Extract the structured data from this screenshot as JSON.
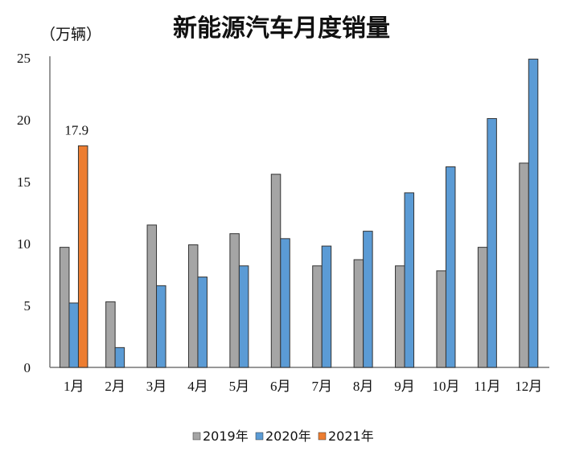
{
  "chart_data": {
    "type": "bar",
    "title": "新能源汽车月度销量",
    "ylabel": "（万辆）",
    "xlabel": "",
    "ylim": [
      0,
      25
    ],
    "yticks": [
      0,
      5,
      10,
      15,
      20,
      25
    ],
    "grid": false,
    "legend_position": "bottom",
    "categories": [
      "1月",
      "2月",
      "3月",
      "4月",
      "5月",
      "6月",
      "7月",
      "8月",
      "9月",
      "10月",
      "11月",
      "12月"
    ],
    "series": [
      {
        "name": "2019年",
        "color": "#a5a5a5",
        "values": [
          9.7,
          5.3,
          11.5,
          9.9,
          10.8,
          15.6,
          8.2,
          8.7,
          8.2,
          7.8,
          9.7,
          16.5
        ]
      },
      {
        "name": "2020年",
        "color": "#5b9bd5",
        "values": [
          5.2,
          1.6,
          6.6,
          7.3,
          8.2,
          10.4,
          9.8,
          11.0,
          14.1,
          16.2,
          20.1,
          24.9
        ]
      },
      {
        "name": "2021年",
        "color": "#ed7d31",
        "values": [
          17.9,
          null,
          null,
          null,
          null,
          null,
          null,
          null,
          null,
          null,
          null,
          null
        ]
      }
    ],
    "annotations": [
      {
        "category": "1月",
        "series": "2021年",
        "text": "17.9"
      }
    ]
  }
}
